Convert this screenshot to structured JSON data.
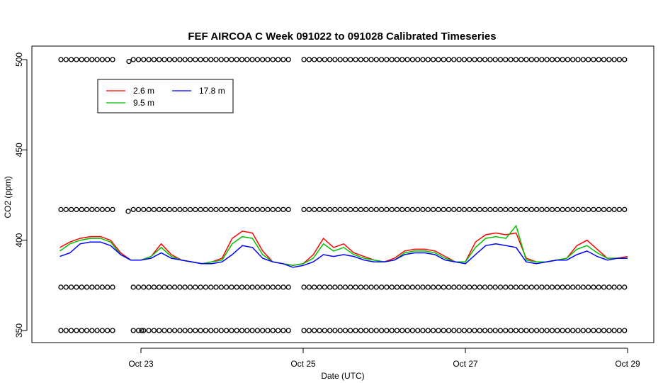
{
  "chart_data": {
    "type": "line",
    "title": "FEF AIRCOA C  Week 091022 to 091028  Calibrated Timeseries",
    "xlabel": "Date (UTC)",
    "ylabel": "CO2 (ppm)",
    "x_ticks": [
      "Oct 23",
      "Oct 25",
      "Oct 27",
      "Oct 29"
    ],
    "y_ticks": [
      350,
      400,
      450,
      500
    ],
    "ylim": [
      345,
      505
    ],
    "legend_position": "top-left",
    "grid": false,
    "series": [
      {
        "name": "2.6 m",
        "color": "#ff0000",
        "x": [
          "Oct 22 00:00",
          "Oct 22 03:00",
          "Oct 22 06:00",
          "Oct 22 09:00",
          "Oct 22 12:00",
          "Oct 22 15:00",
          "Oct 22 18:00",
          "Oct 22 21:00",
          "Oct 23 00:00",
          "Oct 23 03:00",
          "Oct 23 06:00",
          "Oct 23 09:00",
          "Oct 23 12:00",
          "Oct 23 15:00",
          "Oct 23 18:00",
          "Oct 23 21:00",
          "Oct 24 00:00",
          "Oct 24 03:00",
          "Oct 24 06:00",
          "Oct 24 09:00",
          "Oct 24 12:00",
          "Oct 24 15:00",
          "Oct 24 18:00",
          "Oct 24 21:00",
          "Oct 25 00:00",
          "Oct 25 03:00",
          "Oct 25 06:00",
          "Oct 25 09:00",
          "Oct 25 12:00",
          "Oct 25 15:00",
          "Oct 25 18:00",
          "Oct 25 21:00",
          "Oct 26 00:00",
          "Oct 26 03:00",
          "Oct 26 06:00",
          "Oct 26 09:00",
          "Oct 26 12:00",
          "Oct 26 15:00",
          "Oct 26 18:00",
          "Oct 26 21:00",
          "Oct 27 00:00",
          "Oct 27 03:00",
          "Oct 27 06:00",
          "Oct 27 09:00",
          "Oct 27 12:00",
          "Oct 27 15:00",
          "Oct 27 18:00",
          "Oct 27 21:00",
          "Oct 28 00:00",
          "Oct 28 03:00",
          "Oct 28 06:00",
          "Oct 28 09:00",
          "Oct 28 12:00",
          "Oct 28 15:00",
          "Oct 28 18:00",
          "Oct 28 21:00",
          "Oct 29 00:00"
        ],
        "values": [
          396,
          399,
          401,
          402,
          402,
          400,
          393,
          389,
          389,
          391,
          398,
          392,
          389,
          388,
          387,
          388,
          390,
          401,
          405,
          404,
          394,
          388,
          387,
          386,
          387,
          392,
          401,
          396,
          398,
          393,
          391,
          389,
          388,
          390,
          394,
          395,
          395,
          394,
          391,
          388,
          388,
          399,
          403,
          404,
          403,
          404,
          390,
          388,
          388,
          389,
          390,
          397,
          400,
          395,
          390,
          390,
          391
        ]
      },
      {
        "name": "9.5 m",
        "color": "#00c000",
        "x": [
          "Oct 22 00:00",
          "Oct 22 03:00",
          "Oct 22 06:00",
          "Oct 22 09:00",
          "Oct 22 12:00",
          "Oct 22 15:00",
          "Oct 22 18:00",
          "Oct 22 21:00",
          "Oct 23 00:00",
          "Oct 23 03:00",
          "Oct 23 06:00",
          "Oct 23 09:00",
          "Oct 23 12:00",
          "Oct 23 15:00",
          "Oct 23 18:00",
          "Oct 23 21:00",
          "Oct 24 00:00",
          "Oct 24 03:00",
          "Oct 24 06:00",
          "Oct 24 09:00",
          "Oct 24 12:00",
          "Oct 24 15:00",
          "Oct 24 18:00",
          "Oct 24 21:00",
          "Oct 25 00:00",
          "Oct 25 03:00",
          "Oct 25 06:00",
          "Oct 25 09:00",
          "Oct 25 12:00",
          "Oct 25 15:00",
          "Oct 25 18:00",
          "Oct 25 21:00",
          "Oct 26 00:00",
          "Oct 26 03:00",
          "Oct 26 06:00",
          "Oct 26 09:00",
          "Oct 26 12:00",
          "Oct 26 15:00",
          "Oct 26 18:00",
          "Oct 26 21:00",
          "Oct 27 00:00",
          "Oct 27 03:00",
          "Oct 27 06:00",
          "Oct 27 09:00",
          "Oct 27 12:00",
          "Oct 27 15:00",
          "Oct 27 18:00",
          "Oct 27 21:00",
          "Oct 28 00:00",
          "Oct 28 03:00",
          "Oct 28 06:00",
          "Oct 28 09:00",
          "Oct 28 12:00",
          "Oct 28 15:00",
          "Oct 28 18:00",
          "Oct 28 21:00",
          "Oct 29 00:00"
        ],
        "values": [
          394,
          398,
          400,
          401,
          401,
          399,
          392,
          389,
          389,
          391,
          396,
          391,
          389,
          388,
          387,
          388,
          389,
          398,
          402,
          401,
          392,
          388,
          387,
          386,
          387,
          390,
          398,
          394,
          396,
          392,
          390,
          389,
          388,
          389,
          393,
          394,
          394,
          393,
          390,
          388,
          388,
          396,
          401,
          402,
          401,
          408,
          389,
          388,
          388,
          389,
          390,
          395,
          397,
          393,
          390,
          390,
          390
        ]
      },
      {
        "name": "17.8 m",
        "color": "#0000ff",
        "x": [
          "Oct 22 00:00",
          "Oct 22 03:00",
          "Oct 22 06:00",
          "Oct 22 09:00",
          "Oct 22 12:00",
          "Oct 22 15:00",
          "Oct 22 18:00",
          "Oct 22 21:00",
          "Oct 23 00:00",
          "Oct 23 03:00",
          "Oct 23 06:00",
          "Oct 23 09:00",
          "Oct 23 12:00",
          "Oct 23 15:00",
          "Oct 23 18:00",
          "Oct 23 21:00",
          "Oct 24 00:00",
          "Oct 24 03:00",
          "Oct 24 06:00",
          "Oct 24 09:00",
          "Oct 24 12:00",
          "Oct 24 15:00",
          "Oct 24 18:00",
          "Oct 24 21:00",
          "Oct 25 00:00",
          "Oct 25 03:00",
          "Oct 25 06:00",
          "Oct 25 09:00",
          "Oct 25 12:00",
          "Oct 25 15:00",
          "Oct 25 18:00",
          "Oct 25 21:00",
          "Oct 26 00:00",
          "Oct 26 03:00",
          "Oct 26 06:00",
          "Oct 26 09:00",
          "Oct 26 12:00",
          "Oct 26 15:00",
          "Oct 26 18:00",
          "Oct 26 21:00",
          "Oct 27 00:00",
          "Oct 27 03:00",
          "Oct 27 06:00",
          "Oct 27 09:00",
          "Oct 27 12:00",
          "Oct 27 15:00",
          "Oct 27 18:00",
          "Oct 27 21:00",
          "Oct 28 00:00",
          "Oct 28 03:00",
          "Oct 28 06:00",
          "Oct 28 09:00",
          "Oct 28 12:00",
          "Oct 28 15:00",
          "Oct 28 18:00",
          "Oct 28 21:00",
          "Oct 29 00:00"
        ],
        "values": [
          391,
          393,
          398,
          399,
          399,
          397,
          392,
          389,
          389,
          390,
          393,
          390,
          389,
          388,
          387,
          387,
          388,
          392,
          397,
          396,
          390,
          388,
          387,
          385,
          386,
          388,
          392,
          391,
          392,
          391,
          389,
          388,
          388,
          389,
          392,
          393,
          393,
          392,
          389,
          388,
          387,
          392,
          397,
          398,
          397,
          396,
          388,
          387,
          388,
          389,
          389,
          392,
          394,
          391,
          389,
          390,
          390
        ]
      },
      {
        "name": "calibration points",
        "marker": "open-circle",
        "levels": [
          500,
          417,
          374,
          350
        ]
      }
    ]
  }
}
